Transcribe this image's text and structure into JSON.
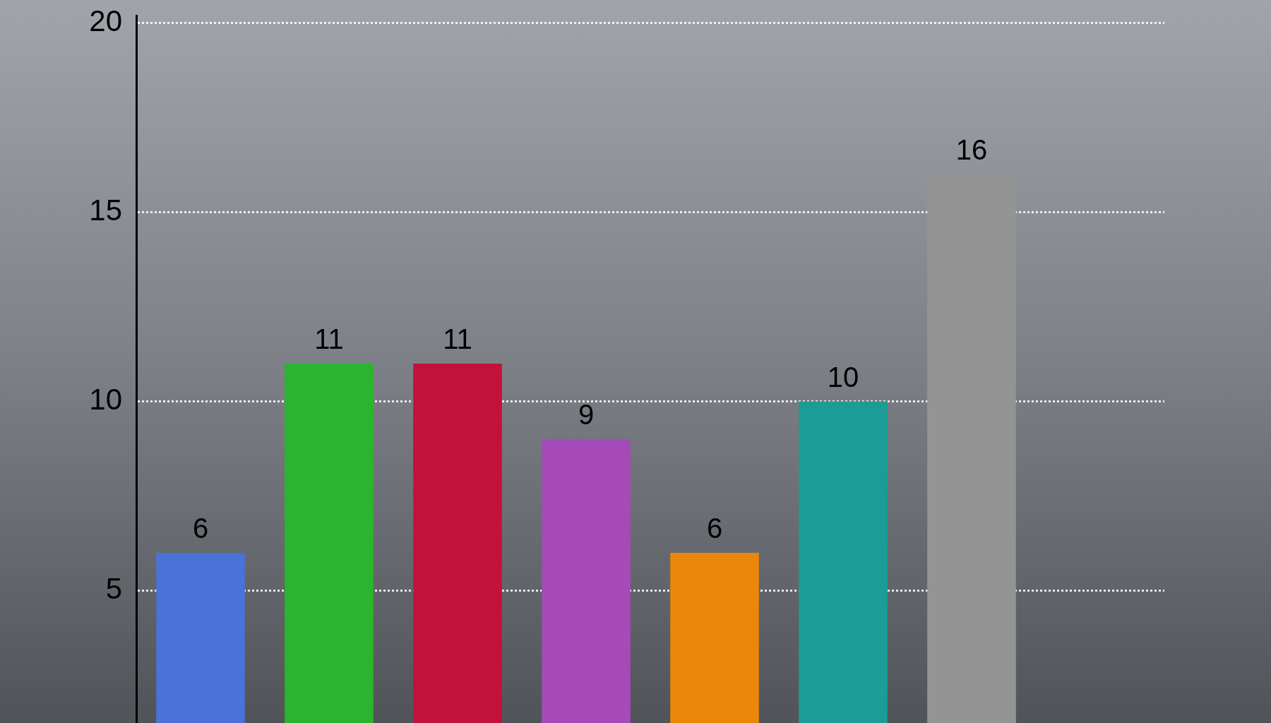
{
  "chart_data": {
    "type": "bar",
    "categories": [
      null,
      null,
      null,
      null,
      null,
      null,
      null,
      null
    ],
    "values": [
      6,
      11,
      11,
      9,
      6,
      10,
      16,
      null
    ],
    "colors": [
      "#4a72d8",
      "#2bb52e",
      "#c2123a",
      "#a54ab8",
      "#ea860a",
      "#1b9c96",
      "#949494",
      null
    ],
    "ylim": [
      1.5,
      20.2
    ],
    "yticks": [
      5,
      10,
      15,
      20
    ],
    "grid": "y",
    "data_labels": true
  }
}
